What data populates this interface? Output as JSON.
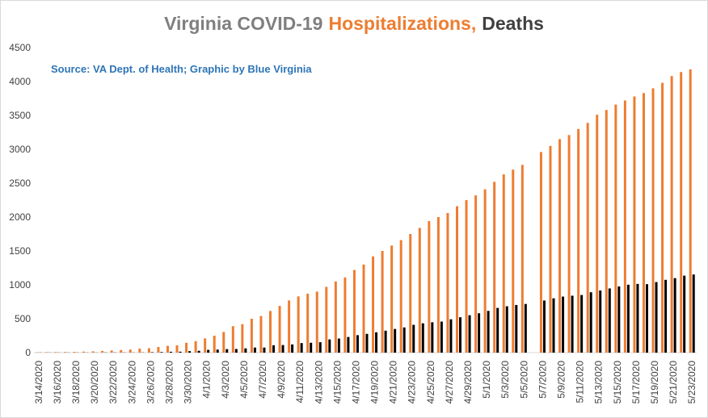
{
  "chart_data": {
    "type": "bar",
    "title_parts": [
      {
        "text": "Virginia COVID-19",
        "color": "#7f7f7f"
      },
      {
        "text": "Hospitalizations,",
        "color": "#ed7d31"
      },
      {
        "text": "Deaths",
        "color": "#404040"
      }
    ],
    "annotation": "Source: VA Dept. of Health; Graphic by Blue Virginia",
    "categories": [
      "3/14/2020",
      null,
      "3/16/2020",
      null,
      "3/18/2020",
      null,
      "3/20/2020",
      null,
      "3/22/2020",
      null,
      "3/24/2020",
      null,
      "3/26/2020",
      null,
      "3/28/2020",
      null,
      "3/30/2020",
      null,
      "4/1/2020",
      null,
      "4/3/2020",
      null,
      "4/5/2020",
      null,
      "4/7/2020",
      null,
      "4/9/2020",
      null,
      "4/11/2020",
      null,
      "4/13/2020",
      null,
      "4/15/2020",
      null,
      "4/17/2020",
      null,
      "4/19/2020",
      null,
      "4/21/2020",
      null,
      "4/23/2020",
      null,
      "4/25/2020",
      null,
      "4/27/2020",
      null,
      "4/29/2020",
      null,
      "5/1/2020",
      null,
      "5/3/2020",
      null,
      "5/5/2020",
      null,
      "5/7/2020",
      null,
      "5/9/2020",
      null,
      "5/11/2020",
      null,
      "5/13/2020",
      null,
      "5/15/2020",
      null,
      "5/17/2020",
      null,
      "5/19/2020",
      null,
      "5/21/2020",
      null,
      "5/23/2020"
    ],
    "series": [
      {
        "color": "#ed7d31",
        "values": [
          5,
          8,
          9,
          10,
          12,
          15,
          19,
          25,
          32,
          38,
          45,
          59,
          65,
          83,
          100,
          108,
          145,
          170,
          210,
          250,
          305,
          390,
          420,
          500,
          540,
          615,
          690,
          770,
          830,
          870,
          900,
          970,
          1050,
          1110,
          1220,
          1300,
          1420,
          1500,
          1580,
          1660,
          1750,
          1840,
          1940,
          2000,
          2060,
          2160,
          2250,
          2320,
          2410,
          2520,
          2630,
          2700,
          2770,
          null,
          2960,
          3050,
          3150,
          3210,
          3300,
          3390,
          3510,
          3580,
          3660,
          3720,
          3780,
          3830,
          3900,
          3980,
          4080,
          4140,
          4180
        ]
      },
      {
        "color": "#000000",
        "values": [
          2,
          2,
          2,
          2,
          2,
          2,
          2,
          3,
          3,
          3,
          2,
          3,
          7,
          9,
          13,
          14,
          22,
          27,
          41,
          45,
          52,
          54,
          63,
          75,
          75,
          109,
          112,
          121,
          141,
          146,
          154,
          195,
          208,
          231,
          258,
          277,
          300,
          324,
          349,
          372,
          410,
          433,
          448,
          458,
          492,
          522,
          552,
          581,
          616,
          660,
          684,
          703,
          718,
          null,
          769,
          801,
          827,
          840,
          850,
          891,
          917,
          947,
          977,
          1002,
          1014,
          1010,
          1041,
          1074,
          1099,
          1136,
          1153
        ]
      }
    ],
    "ylim": [
      0,
      4500
    ],
    "yticks": [
      0,
      500,
      1000,
      1500,
      2000,
      2500,
      3000,
      3500,
      4000,
      4500
    ]
  }
}
